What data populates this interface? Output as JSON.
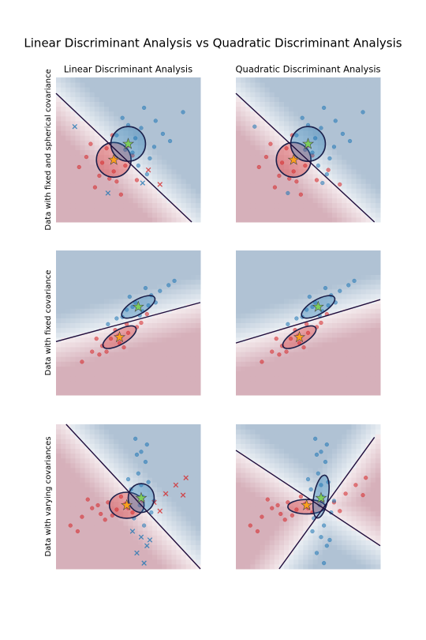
{
  "title": "Linear Discriminant Analysis vs Quadratic Discriminant Analysis",
  "chart_data": [
    {
      "type": "scatter",
      "title": "Linear Discriminant Analysis",
      "ylabel": "Data with fixed and spherical covariance",
      "xlim": [
        0,
        10
      ],
      "ylim": [
        0,
        10
      ],
      "series": [
        {
          "color": "#d62728",
          "marker": "o",
          "x": [
            2.1,
            3.0,
            3.5,
            4.2,
            4.8,
            5.3,
            2.7,
            3.9,
            4.5,
            1.6,
            3.2,
            4.0,
            5.6,
            2.4,
            3.7,
            4.9
          ],
          "values": [
            4.5,
            3.2,
            5.1,
            2.8,
            3.9,
            4.6,
            2.4,
            6.0,
            1.9,
            3.8,
            4.1,
            3.5,
            2.9,
            5.4,
            3.0,
            5.2
          ]
        },
        {
          "color": "#1f77b4",
          "marker": "o",
          "x": [
            5.9,
            6.8,
            4.6,
            5.3,
            7.4,
            6.1,
            4.2,
            5.7,
            6.5,
            7.9,
            5.0,
            4.8,
            6.9,
            8.8,
            5.5,
            6.3
          ],
          "values": [
            6.5,
            5.2,
            7.2,
            4.8,
            6.1,
            7.9,
            6.0,
            3.9,
            4.4,
            5.6,
            6.7,
            5.0,
            7.0,
            7.6,
            5.8,
            3.3
          ]
        },
        {
          "color": "#d62728",
          "marker": "x",
          "x": [
            6.4,
            7.2
          ],
          "values": [
            3.6,
            2.6
          ]
        },
        {
          "color": "#1f77b4",
          "marker": "x",
          "x": [
            1.3,
            3.6,
            6.0
          ],
          "values": [
            6.6,
            2.0,
            2.7
          ]
        }
      ],
      "means": [
        {
          "x": 4.0,
          "y": 4.3,
          "color": "#ff9f1c"
        },
        {
          "x": 5.0,
          "y": 5.4,
          "color": "#7ccf5b"
        }
      ],
      "ellipses": [
        {
          "cx": 4.0,
          "cy": 4.3,
          "rx": 1.2,
          "ry": 1.2,
          "angle": 0,
          "color": "#d62728"
        },
        {
          "cx": 5.0,
          "cy": 5.4,
          "rx": 1.2,
          "ry": 1.2,
          "angle": 0,
          "color": "#1f77b4"
        }
      ],
      "boundary": [
        [
          0,
          8.9,
          9.4,
          0
        ]
      ]
    },
    {
      "type": "scatter",
      "title": "Quadratic Discriminant Analysis",
      "xlim": [
        0,
        10
      ],
      "ylim": [
        0,
        10
      ],
      "series": [
        {
          "color": "#d62728",
          "marker": "o",
          "x": [
            2.1,
            3.0,
            3.5,
            4.2,
            4.8,
            5.3,
            2.7,
            3.9,
            4.5,
            1.6,
            3.2,
            4.0,
            5.6,
            2.4,
            3.7,
            4.9,
            6.4,
            7.2
          ],
          "values": [
            4.5,
            3.2,
            5.1,
            2.8,
            3.9,
            4.6,
            2.4,
            6.0,
            1.9,
            3.8,
            4.1,
            3.5,
            2.9,
            5.4,
            3.0,
            5.2,
            3.6,
            2.6
          ]
        },
        {
          "color": "#1f77b4",
          "marker": "o",
          "x": [
            5.9,
            6.8,
            4.6,
            5.3,
            7.4,
            6.1,
            4.2,
            5.7,
            6.5,
            7.9,
            5.0,
            4.8,
            6.9,
            8.8,
            5.5,
            6.3,
            1.3,
            3.6,
            6.0
          ],
          "values": [
            6.5,
            5.2,
            7.2,
            4.8,
            6.1,
            7.9,
            6.0,
            3.9,
            4.4,
            5.6,
            6.7,
            5.0,
            7.0,
            7.6,
            5.8,
            3.3,
            6.6,
            2.0,
            2.7
          ]
        }
      ],
      "means": [
        {
          "x": 4.0,
          "y": 4.3,
          "color": "#ff9f1c"
        },
        {
          "x": 5.0,
          "y": 5.4,
          "color": "#7ccf5b"
        }
      ],
      "ellipses": [
        {
          "cx": 4.0,
          "cy": 4.3,
          "rx": 1.2,
          "ry": 1.2,
          "angle": 0,
          "color": "#d62728"
        },
        {
          "cx": 5.0,
          "cy": 5.4,
          "rx": 1.2,
          "ry": 1.2,
          "angle": 0,
          "color": "#1f77b4"
        }
      ],
      "boundary": [
        [
          0,
          8.9,
          9.6,
          0
        ]
      ]
    },
    {
      "type": "scatter",
      "ylabel": "Data with fixed covariance",
      "xlim": [
        0,
        10
      ],
      "ylim": [
        0,
        10
      ],
      "series": [
        {
          "color": "#d62728",
          "marker": "o",
          "x": [
            2.5,
            3.2,
            3.8,
            4.4,
            5.0,
            5.6,
            3.0,
            4.1,
            4.7,
            5.9,
            1.8,
            3.5,
            4.9,
            6.3,
            2.8,
            4.3
          ],
          "values": [
            3.0,
            3.4,
            3.9,
            3.6,
            4.3,
            4.7,
            2.8,
            4.5,
            3.3,
            5.0,
            2.3,
            3.0,
            4.9,
            5.6,
            3.9,
            4.1
          ]
        },
        {
          "color": "#1f77b4",
          "marker": "o",
          "x": [
            4.2,
            4.9,
            5.5,
            6.0,
            6.6,
            7.2,
            5.1,
            5.8,
            6.4,
            7.8,
            3.6,
            4.6,
            6.9,
            8.2,
            5.3,
            6.2
          ],
          "values": [
            5.3,
            5.9,
            6.4,
            5.8,
            6.9,
            7.2,
            6.8,
            5.5,
            6.2,
            7.6,
            4.9,
            5.4,
            6.4,
            7.9,
            6.1,
            7.4
          ]
        }
      ],
      "means": [
        {
          "x": 4.4,
          "y": 4.0,
          "color": "#ff9f1c"
        },
        {
          "x": 5.7,
          "y": 6.1,
          "color": "#7ccf5b"
        }
      ],
      "ellipses": [
        {
          "cx": 4.4,
          "cy": 4.0,
          "rx": 1.3,
          "ry": 0.5,
          "angle": 30,
          "color": "#d62728"
        },
        {
          "cx": 5.7,
          "cy": 6.1,
          "rx": 1.3,
          "ry": 0.5,
          "angle": 30,
          "color": "#1f77b4"
        }
      ],
      "boundary": [
        [
          0,
          3.7,
          10,
          6.4
        ]
      ]
    },
    {
      "type": "scatter",
      "xlim": [
        0,
        10
      ],
      "ylim": [
        0,
        10
      ],
      "series": [
        {
          "color": "#d62728",
          "marker": "o",
          "x": [
            2.5,
            3.2,
            3.8,
            4.4,
            5.0,
            5.6,
            3.0,
            4.1,
            4.7,
            5.9,
            1.8,
            3.5,
            4.9,
            6.3,
            2.8,
            4.3
          ],
          "values": [
            3.0,
            3.4,
            3.9,
            3.6,
            4.3,
            4.7,
            2.8,
            4.5,
            3.3,
            5.0,
            2.3,
            3.0,
            4.9,
            5.6,
            3.9,
            4.1
          ]
        },
        {
          "color": "#1f77b4",
          "marker": "o",
          "x": [
            4.2,
            4.9,
            5.5,
            6.0,
            6.6,
            7.2,
            5.1,
            5.8,
            6.4,
            7.8,
            3.6,
            4.6,
            6.9,
            8.2,
            5.3,
            6.2
          ],
          "values": [
            5.3,
            5.9,
            6.4,
            5.8,
            6.9,
            7.2,
            6.8,
            5.5,
            6.2,
            7.6,
            4.9,
            5.4,
            6.4,
            7.9,
            6.1,
            7.4
          ]
        }
      ],
      "means": [
        {
          "x": 4.4,
          "y": 4.0,
          "color": "#ff9f1c"
        },
        {
          "x": 5.7,
          "y": 6.1,
          "color": "#7ccf5b"
        }
      ],
      "ellipses": [
        {
          "cx": 4.4,
          "cy": 4.0,
          "rx": 1.3,
          "ry": 0.5,
          "angle": 30,
          "color": "#d62728"
        },
        {
          "cx": 5.7,
          "cy": 6.1,
          "rx": 1.3,
          "ry": 0.5,
          "angle": 30,
          "color": "#1f77b4"
        }
      ],
      "boundary": [
        [
          0,
          3.6,
          10,
          6.6
        ]
      ]
    },
    {
      "type": "scatter",
      "ylabel": "Data with varying covariances",
      "xlim": [
        0,
        10
      ],
      "ylim": [
        0,
        10
      ],
      "series": [
        {
          "color": "#d62728",
          "marker": "o",
          "x": [
            1.0,
            1.8,
            2.5,
            3.1,
            3.6,
            4.2,
            4.8,
            5.3,
            2.2,
            3.4,
            4.5,
            1.5,
            2.9,
            3.9,
            5.0,
            6.0
          ],
          "values": [
            3.0,
            3.6,
            4.2,
            3.8,
            4.6,
            4.1,
            4.5,
            3.9,
            4.8,
            3.4,
            5.0,
            2.6,
            4.4,
            3.7,
            4.2,
            4.7
          ]
        },
        {
          "color": "#1f77b4",
          "marker": "o",
          "x": [
            5.5,
            5.9,
            6.2,
            5.7,
            6.4,
            5.2,
            6.0,
            5.8,
            6.6,
            5.4,
            6.1,
            5.6,
            6.3,
            5.9,
            5.0,
            6.8
          ],
          "values": [
            9.0,
            8.1,
            7.4,
            6.6,
            6.0,
            5.5,
            5.0,
            4.4,
            3.9,
            3.5,
            3.0,
            7.9,
            8.6,
            5.8,
            6.2,
            4.7
          ]
        },
        {
          "color": "#d62728",
          "marker": "x",
          "x": [
            6.8,
            7.6,
            8.3,
            9.0,
            7.2,
            8.8
          ],
          "values": [
            4.6,
            5.2,
            5.8,
            6.3,
            4.0,
            5.1
          ]
        },
        {
          "color": "#1f77b4",
          "marker": "x",
          "x": [
            5.9,
            6.3,
            5.6,
            6.1,
            5.3,
            6.5
          ],
          "values": [
            2.2,
            1.6,
            1.1,
            0.4,
            2.6,
            2.0
          ]
        }
      ],
      "means": [
        {
          "x": 4.9,
          "y": 4.4,
          "color": "#ff9f1c"
        },
        {
          "x": 5.9,
          "y": 4.9,
          "color": "#7ccf5b"
        }
      ],
      "ellipses": [
        {
          "cx": 4.9,
          "cy": 4.4,
          "rx": 1.2,
          "ry": 0.9,
          "angle": 0,
          "color": "#d62728"
        },
        {
          "cx": 5.9,
          "cy": 4.9,
          "rx": 0.9,
          "ry": 1.0,
          "angle": 0,
          "color": "#1f77b4"
        }
      ],
      "boundary": [
        [
          0.7,
          10,
          10,
          0
        ]
      ]
    },
    {
      "type": "scatter",
      "xlim": [
        0,
        10
      ],
      "ylim": [
        0,
        10
      ],
      "series": [
        {
          "color": "#d62728",
          "marker": "o",
          "x": [
            1.0,
            1.8,
            2.5,
            3.1,
            3.6,
            4.2,
            4.8,
            5.3,
            2.2,
            3.4,
            4.5,
            1.5,
            2.9,
            3.9,
            5.0,
            6.0,
            6.8,
            7.6,
            8.3,
            9.0,
            7.2,
            8.8
          ],
          "values": [
            3.0,
            3.6,
            4.2,
            3.8,
            4.6,
            4.1,
            4.5,
            3.9,
            4.8,
            3.4,
            5.0,
            2.6,
            4.4,
            3.7,
            4.2,
            4.7,
            4.6,
            5.2,
            5.8,
            6.3,
            4.0,
            5.1
          ]
        },
        {
          "color": "#1f77b4",
          "marker": "o",
          "x": [
            5.5,
            5.9,
            6.2,
            5.7,
            6.4,
            5.2,
            6.0,
            5.8,
            6.6,
            5.4,
            6.1,
            5.6,
            6.3,
            5.9,
            5.0,
            6.8,
            5.9,
            6.3,
            5.6,
            6.1,
            5.3,
            6.5
          ],
          "values": [
            9.0,
            8.1,
            7.4,
            6.6,
            6.0,
            5.5,
            5.0,
            4.4,
            3.9,
            3.5,
            3.0,
            7.9,
            8.6,
            5.8,
            6.2,
            4.7,
            2.2,
            1.6,
            1.1,
            0.4,
            2.6,
            2.0
          ]
        }
      ],
      "means": [
        {
          "x": 4.9,
          "y": 4.4,
          "color": "#ff9f1c"
        },
        {
          "x": 5.9,
          "y": 4.9,
          "color": "#7ccf5b"
        }
      ],
      "ellipses": [
        {
          "cx": 4.9,
          "cy": 4.3,
          "rx": 1.3,
          "ry": 0.5,
          "angle": 0,
          "color": "#d62728"
        },
        {
          "cx": 5.9,
          "cy": 5.0,
          "rx": 0.5,
          "ry": 1.5,
          "angle": -10,
          "color": "#1f77b4"
        }
      ],
      "boundary": [
        [
          0,
          8.2,
          10,
          1.6
        ],
        [
          3.0,
          0,
          9.6,
          9.1
        ]
      ]
    }
  ]
}
